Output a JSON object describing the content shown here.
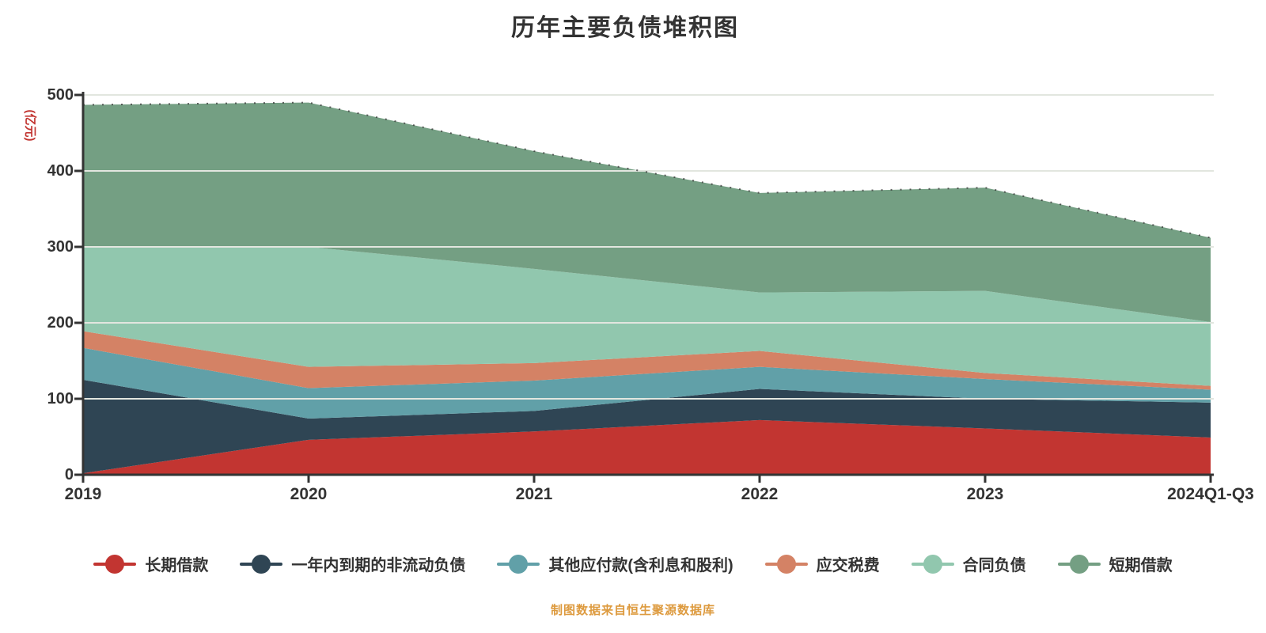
{
  "chart": {
    "title": "历年主要负债堆积图",
    "y_axis_name": "(亿元)",
    "source_note": "制图数据来自恒生聚源数据库"
  },
  "chart_data": {
    "type": "area",
    "stacked": true,
    "title": "历年主要负债堆积图",
    "xlabel": "",
    "ylabel": "(亿元)",
    "categories": [
      "2019",
      "2020",
      "2021",
      "2022",
      "2023",
      "2024Q1-Q3"
    ],
    "series": [
      {
        "name": "长期借款",
        "color": "#c23531",
        "values": [
          2,
          46,
          57,
          72,
          61,
          49
        ]
      },
      {
        "name": "一年内到期的非流动负债",
        "color": "#2f4554",
        "values": [
          123,
          28,
          27,
          41,
          39,
          46
        ]
      },
      {
        "name": "其他应付款(含利息和股利)",
        "color": "#61a0a8",
        "values": [
          42,
          40,
          40,
          29,
          26,
          17
        ]
      },
      {
        "name": "应交税费",
        "color": "#d48265",
        "values": [
          22,
          28,
          23,
          21,
          8,
          5
        ]
      },
      {
        "name": "合同负债",
        "color": "#91c7ae",
        "values": [
          111,
          158,
          124,
          77,
          108,
          84
        ]
      },
      {
        "name": "短期借款",
        "color": "#749f83",
        "values": [
          187,
          190,
          155,
          131,
          136,
          111
        ]
      }
    ],
    "stacked_totals": [
      487,
      490,
      426,
      371,
      378,
      312
    ],
    "ylim": [
      0,
      500
    ],
    "y_ticks": [
      0,
      100,
      200,
      300,
      400,
      500
    ],
    "grid": true,
    "legend_position": "bottom",
    "style": {
      "axis_color": "#333333",
      "grid_line_color": "#e2e6df",
      "text_color": "#333333",
      "y_name_color": "#c23531",
      "source_color": "#dd9a3e",
      "background": "#ffffff",
      "silhouette_dot_color": "#333333"
    }
  }
}
